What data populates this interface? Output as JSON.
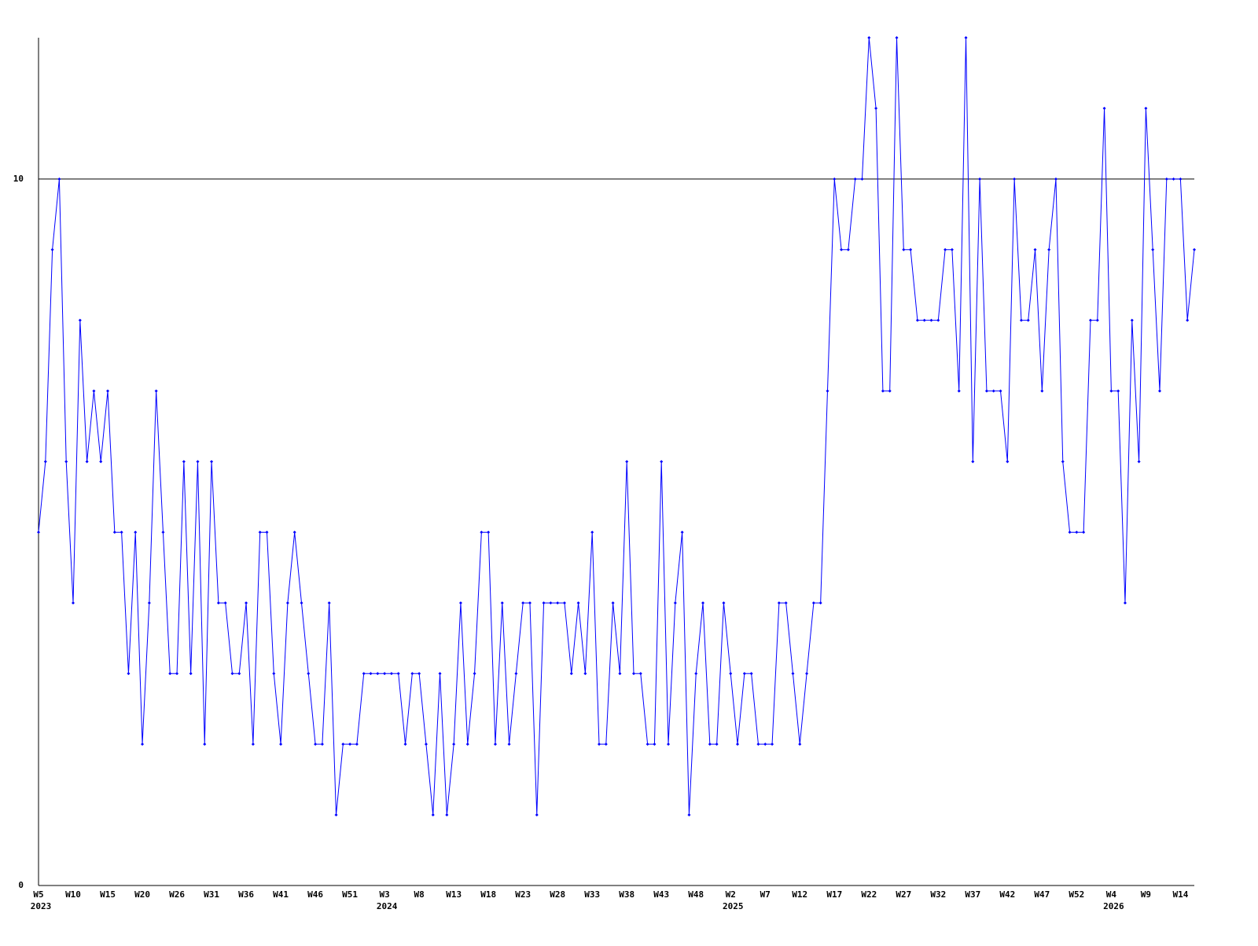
{
  "chart_data": {
    "type": "line",
    "categories": [
      "W5",
      null,
      null,
      null,
      null,
      "W10",
      null,
      null,
      null,
      null,
      "W15",
      null,
      null,
      null,
      null,
      "W20",
      null,
      null,
      null,
      null,
      "W26",
      null,
      null,
      null,
      null,
      "W31",
      null,
      null,
      null,
      null,
      "W36",
      null,
      null,
      null,
      null,
      "W41",
      null,
      null,
      null,
      null,
      "W46",
      null,
      null,
      null,
      null,
      "W51",
      null,
      null,
      null,
      null,
      "W3",
      null,
      null,
      null,
      null,
      "W8",
      null,
      null,
      null,
      null,
      "W13",
      null,
      null,
      null,
      null,
      "W18",
      null,
      null,
      null,
      null,
      "W23",
      null,
      null,
      null,
      null,
      "W28",
      null,
      null,
      null,
      null,
      "W33",
      null,
      null,
      null,
      null,
      "W38",
      null,
      null,
      null,
      null,
      "W43",
      null,
      null,
      null,
      null,
      "W48",
      null,
      null,
      null,
      null,
      "W2",
      null,
      null,
      null,
      null,
      "W7",
      null,
      null,
      null,
      null,
      "W12",
      null,
      null,
      null,
      null,
      "W17",
      null,
      null,
      null,
      null,
      "W22",
      null,
      null,
      null,
      null,
      "W27",
      null,
      null,
      null,
      null,
      "W32",
      null,
      null,
      null,
      null,
      "W37",
      null,
      null,
      null,
      null,
      "W42",
      null,
      null,
      null,
      null,
      "W47",
      null,
      null,
      null,
      null,
      "W52",
      null,
      null,
      null,
      null,
      "W4",
      null,
      null,
      null,
      null,
      "W9",
      null,
      null,
      null,
      null,
      "W14",
      null,
      null
    ],
    "years": [
      "2023",
      null,
      null,
      null,
      null,
      null,
      null,
      null,
      null,
      null,
      null,
      null,
      null,
      null,
      null,
      null,
      null,
      null,
      null,
      null,
      null,
      null,
      null,
      null,
      null,
      null,
      null,
      null,
      null,
      null,
      null,
      null,
      null,
      null,
      null,
      null,
      null,
      null,
      null,
      null,
      null,
      null,
      null,
      null,
      null,
      null,
      null,
      null,
      null,
      null,
      "2024",
      null,
      null,
      null,
      null,
      null,
      null,
      null,
      null,
      null,
      null,
      null,
      null,
      null,
      null,
      null,
      null,
      null,
      null,
      null,
      null,
      null,
      null,
      null,
      null,
      null,
      null,
      null,
      null,
      null,
      null,
      null,
      null,
      null,
      null,
      null,
      null,
      null,
      null,
      null,
      null,
      null,
      null,
      null,
      null,
      null,
      null,
      null,
      null,
      null,
      "2025",
      null,
      null,
      null,
      null,
      null,
      null,
      null,
      null,
      null,
      null,
      null,
      null,
      null,
      null,
      null,
      null,
      null,
      null,
      null,
      null,
      null,
      null,
      null,
      null,
      null,
      null,
      null,
      null,
      null,
      null,
      null,
      null,
      null,
      null,
      null,
      null,
      null,
      null,
      null,
      null,
      null,
      null,
      null,
      null,
      null,
      null,
      null,
      null,
      null,
      null,
      null,
      null,
      null,
      null,
      "2026",
      null,
      null,
      null,
      null,
      null,
      null,
      null,
      null,
      null,
      null,
      null,
      null
    ],
    "series": [
      {
        "color": "#0000ff",
        "values": [
          5,
          6,
          9,
          10,
          6,
          4,
          8,
          6,
          7,
          6,
          7,
          5,
          5,
          3,
          5,
          2,
          4,
          7,
          5,
          3,
          3,
          6,
          3,
          6,
          2,
          6,
          4,
          4,
          3,
          3,
          4,
          2,
          5,
          5,
          3,
          2,
          4,
          5,
          4,
          3,
          2,
          2,
          4,
          1,
          2,
          2,
          2,
          3,
          3,
          3,
          3,
          3,
          3,
          2,
          3,
          3,
          2,
          1,
          3,
          1,
          2,
          4,
          2,
          3,
          5,
          5,
          2,
          4,
          2,
          3,
          4,
          4,
          1,
          4,
          4,
          4,
          4,
          3,
          4,
          3,
          5,
          2,
          2,
          4,
          3,
          6,
          3,
          3,
          2,
          2,
          6,
          2,
          4,
          5,
          1,
          3,
          4,
          2,
          2,
          4,
          3,
          2,
          3,
          3,
          2,
          2,
          2,
          4,
          4,
          3,
          2,
          3,
          4,
          4,
          7,
          10,
          9,
          9,
          10,
          10,
          12,
          11,
          7,
          7,
          12,
          9,
          9,
          8,
          8,
          8,
          8,
          9,
          9,
          7,
          12,
          6,
          10,
          7,
          7,
          7,
          6,
          10,
          8,
          8,
          9,
          7,
          9,
          10,
          6,
          5,
          5,
          5,
          8,
          8,
          11,
          7,
          7,
          4,
          8,
          6,
          11,
          9,
          7,
          10,
          10,
          10,
          8,
          9
        ]
      }
    ],
    "ylim": [
      0,
      12
    ],
    "yticks": [
      0,
      10
    ],
    "grid": true
  }
}
